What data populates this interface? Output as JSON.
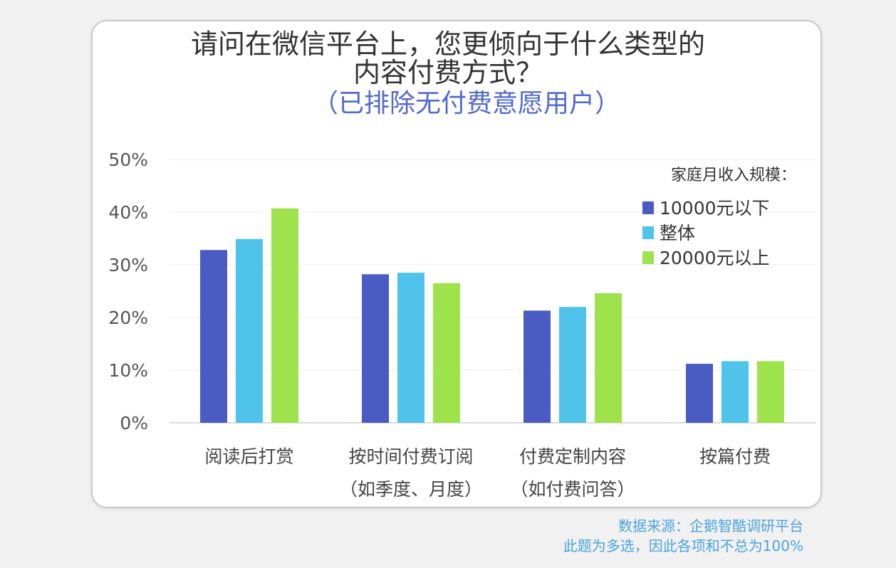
{
  "title_line1": "请问在微信平台上，您更倾向于什么类型的",
  "title_line2": "内容付费方式？",
  "subtitle": "（已排除无付费意愿用户）",
  "source_line1": "数据来源：企鹅智酷调研平台",
  "source_line2": "此题为多选，因此各项和不总为100%",
  "chart_data": {
    "type": "bar",
    "title": "请问在微信平台上，您更倾向于什么类型的内容付费方式？（已排除无付费意愿用户）",
    "categories": [
      [
        "阅读后打赏"
      ],
      [
        "按时间付费订阅",
        "（如季度、月度）"
      ],
      [
        "付费定制内容",
        "（如付费问答）"
      ],
      [
        "按篇付费"
      ]
    ],
    "series": [
      {
        "name": "10000元以下",
        "color": "#4a5bc4",
        "values": [
          32.8,
          28.2,
          21.3,
          11.2
        ]
      },
      {
        "name": "整体",
        "color": "#4fc3ea",
        "values": [
          34.9,
          28.5,
          22.0,
          11.7
        ]
      },
      {
        "name": "20000元以上",
        "color": "#9ee34b",
        "values": [
          40.7,
          26.5,
          24.6,
          11.7
        ]
      }
    ],
    "ylim": [
      0,
      50
    ],
    "yticks": [
      "0%",
      "10%",
      "20%",
      "30%",
      "40%",
      "50%"
    ],
    "legend_title": "家庭月收入规模：",
    "legend_position": "top-right",
    "grid": true,
    "xlabel": "",
    "ylabel": ""
  }
}
